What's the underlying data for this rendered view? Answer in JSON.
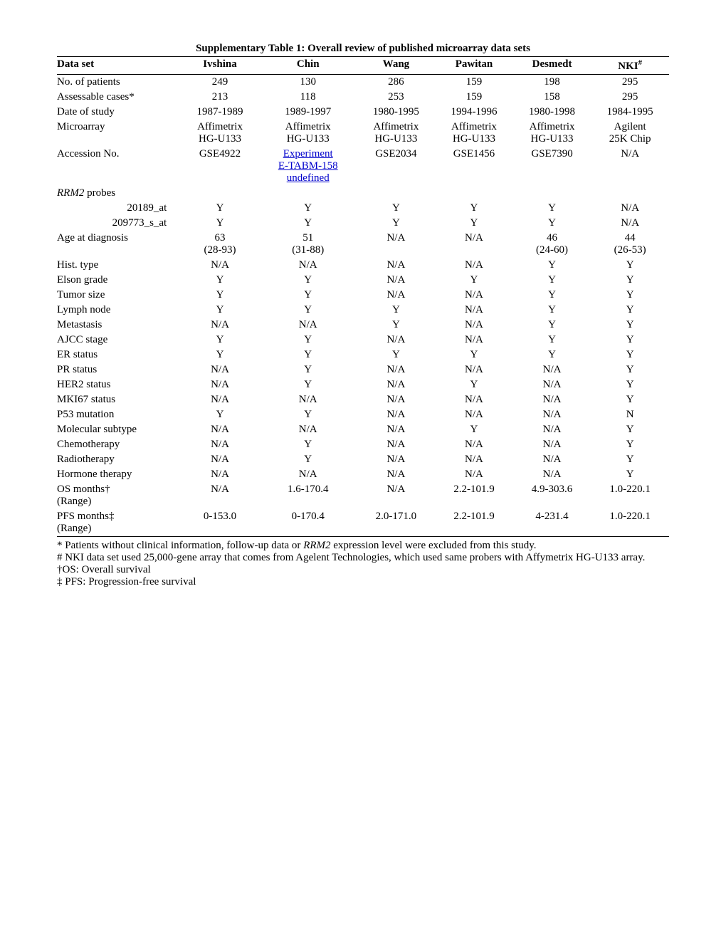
{
  "title": "Supplementary Table 1: Overall review of published microarray data sets",
  "columns": [
    "Data set",
    "Ivshina",
    "Chin",
    "Wang",
    "Pawitan",
    "Desmedt",
    "NKI#"
  ],
  "rows": [
    {
      "label": "No. of patients",
      "cells": [
        "249",
        "130",
        "286",
        "159",
        "198",
        "295"
      ]
    },
    {
      "label": "Assessable cases*",
      "cells": [
        "213",
        "118",
        "253",
        "159",
        "158",
        "295"
      ]
    },
    {
      "label": "Date of study",
      "cells": [
        "1987-1989",
        "1989-1997",
        "1980-1995",
        "1994-1996",
        "1980-1998",
        "1984-1995"
      ]
    },
    {
      "label": "Microarray",
      "cells": [
        "Affimetrix HG-U133",
        "Affimetrix HG-U133",
        "Affimetrix HG-U133",
        "Affimetrix HG-U133",
        "Affimetrix HG-U133",
        "Agilent 25K Chip"
      ],
      "twoLine": true
    },
    {
      "label": "Accession No.",
      "cells": [
        "GSE4922",
        "Experiment E-TABM-158",
        "GSE2034",
        "GSE1456",
        "GSE7390",
        "N/A"
      ],
      "linkCol": 1
    },
    {
      "label": "RRM2 probes",
      "italic": true,
      "cells": [
        "",
        "",
        "",
        "",
        "",
        ""
      ]
    },
    {
      "label": "20189_at",
      "indent": true,
      "cells": [
        "Y",
        "Y",
        "Y",
        "Y",
        "Y",
        "N/A"
      ]
    },
    {
      "label": "209773_s_at",
      "indent": true,
      "cells": [
        "Y",
        "Y",
        "Y",
        "Y",
        "Y",
        "N/A"
      ]
    },
    {
      "label": "Age at diagnosis",
      "cells": [
        "63 (28-93)",
        "51 (31-88)",
        "N/A",
        "N/A",
        "46 (24-60)",
        "44 (26-53)"
      ],
      "twoLine": true
    },
    {
      "label": "Hist. type",
      "cells": [
        "N/A",
        "N/A",
        "N/A",
        "N/A",
        "Y",
        "Y"
      ]
    },
    {
      "label": "Elson grade",
      "cells": [
        "Y",
        "Y",
        "N/A",
        "Y",
        "Y",
        "Y"
      ]
    },
    {
      "label": "Tumor size",
      "cells": [
        "Y",
        "Y",
        "N/A",
        "N/A",
        "Y",
        "Y"
      ]
    },
    {
      "label": "Lymph node",
      "cells": [
        "Y",
        "Y",
        "Y",
        "N/A",
        "Y",
        "Y"
      ]
    },
    {
      "label": "Metastasis",
      "cells": [
        "N/A",
        "N/A",
        "Y",
        "N/A",
        "Y",
        "Y"
      ]
    },
    {
      "label": "AJCC stage",
      "cells": [
        "Y",
        "Y",
        "N/A",
        "N/A",
        "Y",
        "Y"
      ]
    },
    {
      "label": "ER status",
      "cells": [
        "Y",
        "Y",
        "Y",
        "Y",
        "Y",
        "Y"
      ]
    },
    {
      "label": "PR status",
      "cells": [
        "N/A",
        "Y",
        "N/A",
        "N/A",
        "N/A",
        "Y"
      ]
    },
    {
      "label": "HER2 status",
      "cells": [
        "N/A",
        "Y",
        "N/A",
        "Y",
        "N/A",
        "Y"
      ]
    },
    {
      "label": "MKI67 status",
      "cells": [
        "N/A",
        "N/A",
        "N/A",
        "N/A",
        "N/A",
        "Y"
      ]
    },
    {
      "label": "P53 mutation",
      "cells": [
        "Y",
        "Y",
        "N/A",
        "N/A",
        "N/A",
        "N"
      ]
    },
    {
      "label": "Molecular subtype",
      "cells": [
        "N/A",
        "N/A",
        "N/A",
        "Y",
        "N/A",
        "Y"
      ]
    },
    {
      "label": "Chemotherapy",
      "cells": [
        "N/A",
        "Y",
        "N/A",
        "N/A",
        "N/A",
        "Y"
      ]
    },
    {
      "label": "Radiotherapy",
      "cells": [
        "N/A",
        "Y",
        "N/A",
        "N/A",
        "N/A",
        "Y"
      ]
    },
    {
      "label": "Hormone therapy",
      "cells": [
        "N/A",
        "N/A",
        "N/A",
        "N/A",
        "N/A",
        "Y"
      ]
    },
    {
      "label": "OS months† (Range)",
      "cells": [
        "N/A",
        "1.6-170.4",
        "N/A",
        "2.2-101.9",
        "4.9-303.6",
        "1.0-220.1"
      ],
      "twoLineLabel": true
    },
    {
      "label": "PFS months‡ (Range)",
      "cells": [
        "0-153.0",
        "0-170.4",
        "2.0-171.0",
        "2.2-101.9",
        "4-231.4",
        "1.0-220.1"
      ],
      "twoLineLabel": true,
      "last": true
    }
  ],
  "footnotes": [
    "* Patients without clinical information, follow-up data or RRM2 expression level were excluded from this study.",
    "# NKI data set used 25,000-gene array that comes from Agelent Technologies, which used same probers with Affymetrix  HG-U133 array.",
    "†OS: Overall survival",
    "‡ PFS: Progression-free survival"
  ]
}
